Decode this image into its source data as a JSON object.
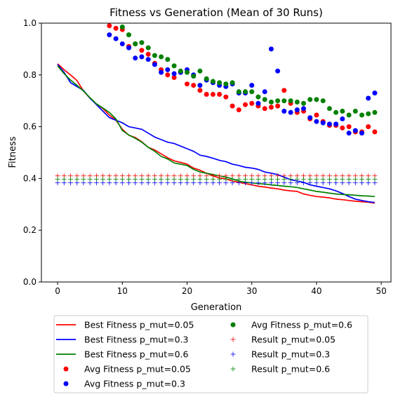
{
  "chart_data": {
    "type": "line",
    "title": "Fitness vs Generation (Mean of 30 Runs)",
    "xlabel": "Generation",
    "ylabel": "Fitness",
    "xlim": [
      -2.5,
      51.5
    ],
    "ylim": [
      0.0,
      1.0
    ],
    "xticks": [
      "0",
      "10",
      "20",
      "30",
      "40",
      "50"
    ],
    "xtick_values": [
      0,
      10,
      20,
      30,
      40,
      50
    ],
    "yticks": [
      "0.0",
      "0.2",
      "0.4",
      "0.6",
      "0.8",
      "1.0"
    ],
    "ytick_values": [
      0.0,
      0.2,
      0.4,
      0.6,
      0.8,
      1.0
    ],
    "grid": false,
    "legend_position": "below-center",
    "series": [
      {
        "name": "Best Fitness p_mut=0.05",
        "kind": "line",
        "color": "#ff0000",
        "x": [
          0,
          1,
          2,
          3,
          4,
          5,
          6,
          7,
          8,
          9,
          10,
          11,
          12,
          13,
          14,
          15,
          16,
          17,
          18,
          19,
          20,
          21,
          22,
          23,
          24,
          25,
          26,
          27,
          28,
          29,
          30,
          31,
          32,
          33,
          34,
          35,
          36,
          37,
          38,
          39,
          40,
          41,
          42,
          43,
          44,
          45,
          46,
          47,
          48,
          49
        ],
        "y": [
          0.843,
          0.82,
          0.8,
          0.778,
          0.738,
          0.71,
          0.688,
          0.67,
          0.645,
          0.625,
          0.59,
          0.567,
          0.558,
          0.542,
          0.52,
          0.51,
          0.495,
          0.48,
          0.468,
          0.462,
          0.455,
          0.44,
          0.432,
          0.42,
          0.41,
          0.402,
          0.398,
          0.39,
          0.385,
          0.38,
          0.375,
          0.37,
          0.367,
          0.363,
          0.36,
          0.355,
          0.352,
          0.35,
          0.34,
          0.335,
          0.33,
          0.328,
          0.325,
          0.32,
          0.318,
          0.315,
          0.312,
          0.31,
          0.308,
          0.305
        ]
      },
      {
        "name": "Best Fitness p_mut=0.3",
        "kind": "line",
        "color": "#0000ff",
        "x": [
          0,
          1,
          2,
          3,
          4,
          5,
          6,
          7,
          8,
          9,
          10,
          11,
          12,
          13,
          14,
          15,
          16,
          17,
          18,
          19,
          20,
          21,
          22,
          23,
          24,
          25,
          26,
          27,
          28,
          29,
          30,
          31,
          32,
          33,
          34,
          35,
          36,
          37,
          38,
          39,
          40,
          41,
          42,
          43,
          44,
          45,
          46,
          47,
          48,
          49
        ],
        "y": [
          0.84,
          0.81,
          0.77,
          0.755,
          0.74,
          0.71,
          0.685,
          0.66,
          0.635,
          0.625,
          0.615,
          0.6,
          0.595,
          0.59,
          0.575,
          0.56,
          0.55,
          0.54,
          0.535,
          0.525,
          0.515,
          0.505,
          0.49,
          0.485,
          0.478,
          0.47,
          0.465,
          0.455,
          0.45,
          0.443,
          0.44,
          0.435,
          0.425,
          0.42,
          0.415,
          0.405,
          0.395,
          0.39,
          0.385,
          0.375,
          0.37,
          0.365,
          0.36,
          0.352,
          0.342,
          0.33,
          0.32,
          0.315,
          0.31,
          0.307
        ]
      },
      {
        "name": "Best Fitness p_mut=0.6",
        "kind": "line",
        "color": "#008000",
        "x": [
          0,
          1,
          2,
          3,
          4,
          5,
          6,
          7,
          8,
          9,
          10,
          11,
          12,
          13,
          14,
          15,
          16,
          17,
          18,
          19,
          20,
          21,
          22,
          23,
          24,
          25,
          26,
          27,
          28,
          29,
          30,
          31,
          32,
          33,
          34,
          35,
          36,
          37,
          38,
          39,
          40,
          41,
          42,
          43,
          44,
          45,
          46,
          47,
          48,
          49
        ],
        "y": [
          0.835,
          0.805,
          0.78,
          0.76,
          0.738,
          0.712,
          0.688,
          0.672,
          0.655,
          0.63,
          0.585,
          0.568,
          0.555,
          0.54,
          0.52,
          0.505,
          0.485,
          0.475,
          0.46,
          0.455,
          0.45,
          0.435,
          0.425,
          0.42,
          0.415,
          0.41,
          0.405,
          0.398,
          0.39,
          0.385,
          0.383,
          0.38,
          0.378,
          0.375,
          0.373,
          0.37,
          0.368,
          0.365,
          0.36,
          0.355,
          0.35,
          0.347,
          0.343,
          0.34,
          0.338,
          0.337,
          0.335,
          0.333,
          0.332,
          0.33
        ]
      },
      {
        "name": "Avg Fitness p_mut=0.05",
        "kind": "scatter",
        "color": "#ff0000",
        "x": [
          8,
          9,
          10,
          11,
          12,
          13,
          14,
          15,
          16,
          17,
          18,
          19,
          20,
          21,
          22,
          23,
          24,
          25,
          26,
          27,
          28,
          29,
          30,
          31,
          32,
          33,
          34,
          35,
          36,
          37,
          38,
          39,
          40,
          41,
          42,
          43,
          44,
          45,
          46,
          47,
          48,
          49
        ],
        "y": [
          0.99,
          0.98,
          0.975,
          0.91,
          0.92,
          0.895,
          0.88,
          0.845,
          0.82,
          0.8,
          0.79,
          0.81,
          0.765,
          0.76,
          0.74,
          0.725,
          0.725,
          0.725,
          0.715,
          0.68,
          0.665,
          0.685,
          0.69,
          0.68,
          0.67,
          0.675,
          0.68,
          0.74,
          0.69,
          0.655,
          0.66,
          0.63,
          0.645,
          0.62,
          0.605,
          0.605,
          0.595,
          0.6,
          0.58,
          0.58,
          0.6,
          0.58
        ]
      },
      {
        "name": "Avg Fitness p_mut=0.3",
        "kind": "scatter",
        "color": "#0000ff",
        "x": [
          8,
          9,
          10,
          11,
          12,
          13,
          14,
          15,
          16,
          17,
          18,
          19,
          20,
          21,
          22,
          23,
          24,
          25,
          26,
          27,
          28,
          29,
          30,
          31,
          32,
          33,
          34,
          35,
          36,
          37,
          38,
          39,
          40,
          41,
          42,
          43,
          44,
          45,
          46,
          47,
          48,
          49
        ],
        "y": [
          0.955,
          0.94,
          0.92,
          0.905,
          0.865,
          0.87,
          0.86,
          0.84,
          0.81,
          0.82,
          0.805,
          0.81,
          0.82,
          0.8,
          0.76,
          0.78,
          0.77,
          0.76,
          0.755,
          0.765,
          0.73,
          0.73,
          0.76,
          0.69,
          0.735,
          0.9,
          0.815,
          0.66,
          0.655,
          0.665,
          0.67,
          0.635,
          0.62,
          0.615,
          0.61,
          0.61,
          0.63,
          0.575,
          0.585,
          0.575,
          0.71,
          0.73
        ]
      },
      {
        "name": "Avg Fitness p_mut=0.6",
        "kind": "scatter",
        "color": "#008000",
        "x": [
          10,
          11,
          12,
          13,
          14,
          15,
          16,
          17,
          18,
          19,
          20,
          21,
          22,
          23,
          24,
          25,
          26,
          27,
          28,
          29,
          30,
          31,
          32,
          33,
          34,
          35,
          36,
          37,
          38,
          39,
          40,
          41,
          42,
          43,
          44,
          45,
          46,
          47,
          48,
          49
        ],
        "y": [
          0.985,
          0.955,
          0.92,
          0.925,
          0.905,
          0.875,
          0.87,
          0.86,
          0.835,
          0.815,
          0.81,
          0.795,
          0.815,
          0.785,
          0.775,
          0.77,
          0.765,
          0.77,
          0.735,
          0.735,
          0.735,
          0.715,
          0.705,
          0.695,
          0.7,
          0.7,
          0.7,
          0.695,
          0.69,
          0.705,
          0.705,
          0.7,
          0.67,
          0.655,
          0.66,
          0.645,
          0.66,
          0.645,
          0.65,
          0.655
        ]
      },
      {
        "name": "Result p_mut=0.05",
        "kind": "plus",
        "color": "#ff0000",
        "x": [
          0,
          1,
          2,
          3,
          4,
          5,
          6,
          7,
          8,
          9,
          10,
          11,
          12,
          13,
          14,
          15,
          16,
          17,
          18,
          19,
          20,
          21,
          22,
          23,
          24,
          25,
          26,
          27,
          28,
          29,
          30,
          31,
          32,
          33,
          34,
          35,
          36,
          37,
          38,
          39,
          40,
          41,
          42,
          43,
          44,
          45,
          46,
          47,
          48,
          49
        ],
        "y": [
          0.41,
          0.41,
          0.41,
          0.41,
          0.41,
          0.41,
          0.41,
          0.41,
          0.41,
          0.41,
          0.41,
          0.41,
          0.41,
          0.41,
          0.41,
          0.41,
          0.41,
          0.41,
          0.41,
          0.41,
          0.41,
          0.41,
          0.41,
          0.41,
          0.41,
          0.41,
          0.41,
          0.41,
          0.41,
          0.41,
          0.41,
          0.41,
          0.41,
          0.41,
          0.41,
          0.41,
          0.41,
          0.41,
          0.41,
          0.41,
          0.41,
          0.41,
          0.41,
          0.41,
          0.41,
          0.41,
          0.41,
          0.41,
          0.41,
          0.41
        ]
      },
      {
        "name": "Result p_mut=0.3",
        "kind": "plus",
        "color": "#0000ff",
        "x": [
          0,
          1,
          2,
          3,
          4,
          5,
          6,
          7,
          8,
          9,
          10,
          11,
          12,
          13,
          14,
          15,
          16,
          17,
          18,
          19,
          20,
          21,
          22,
          23,
          24,
          25,
          26,
          27,
          28,
          29,
          30,
          31,
          32,
          33,
          34,
          35,
          36,
          37,
          38,
          39,
          40,
          41,
          42,
          43,
          44,
          45,
          46,
          47,
          48,
          49
        ],
        "y": [
          0.383,
          0.383,
          0.383,
          0.383,
          0.383,
          0.383,
          0.383,
          0.383,
          0.383,
          0.383,
          0.383,
          0.383,
          0.383,
          0.383,
          0.383,
          0.383,
          0.383,
          0.383,
          0.383,
          0.383,
          0.383,
          0.383,
          0.383,
          0.383,
          0.383,
          0.383,
          0.383,
          0.383,
          0.383,
          0.383,
          0.383,
          0.383,
          0.383,
          0.383,
          0.383,
          0.383,
          0.383,
          0.383,
          0.383,
          0.383,
          0.383,
          0.383,
          0.383,
          0.383,
          0.383,
          0.383,
          0.383,
          0.383,
          0.383,
          0.383
        ]
      },
      {
        "name": "Result p_mut=0.6",
        "kind": "plus",
        "color": "#008000",
        "x": [
          0,
          1,
          2,
          3,
          4,
          5,
          6,
          7,
          8,
          9,
          10,
          11,
          12,
          13,
          14,
          15,
          16,
          17,
          18,
          19,
          20,
          21,
          22,
          23,
          24,
          25,
          26,
          27,
          28,
          29,
          30,
          31,
          32,
          33,
          34,
          35,
          36,
          37,
          38,
          39,
          40,
          41,
          42,
          43,
          44,
          45,
          46,
          47,
          48,
          49
        ],
        "y": [
          0.397,
          0.397,
          0.397,
          0.397,
          0.397,
          0.397,
          0.397,
          0.397,
          0.397,
          0.397,
          0.397,
          0.397,
          0.397,
          0.397,
          0.397,
          0.397,
          0.397,
          0.397,
          0.397,
          0.397,
          0.397,
          0.397,
          0.397,
          0.397,
          0.397,
          0.397,
          0.397,
          0.397,
          0.397,
          0.397,
          0.397,
          0.397,
          0.397,
          0.397,
          0.397,
          0.397,
          0.397,
          0.397,
          0.397,
          0.397,
          0.397,
          0.397,
          0.397,
          0.397,
          0.397,
          0.397,
          0.397,
          0.397,
          0.397,
          0.397
        ]
      }
    ]
  }
}
